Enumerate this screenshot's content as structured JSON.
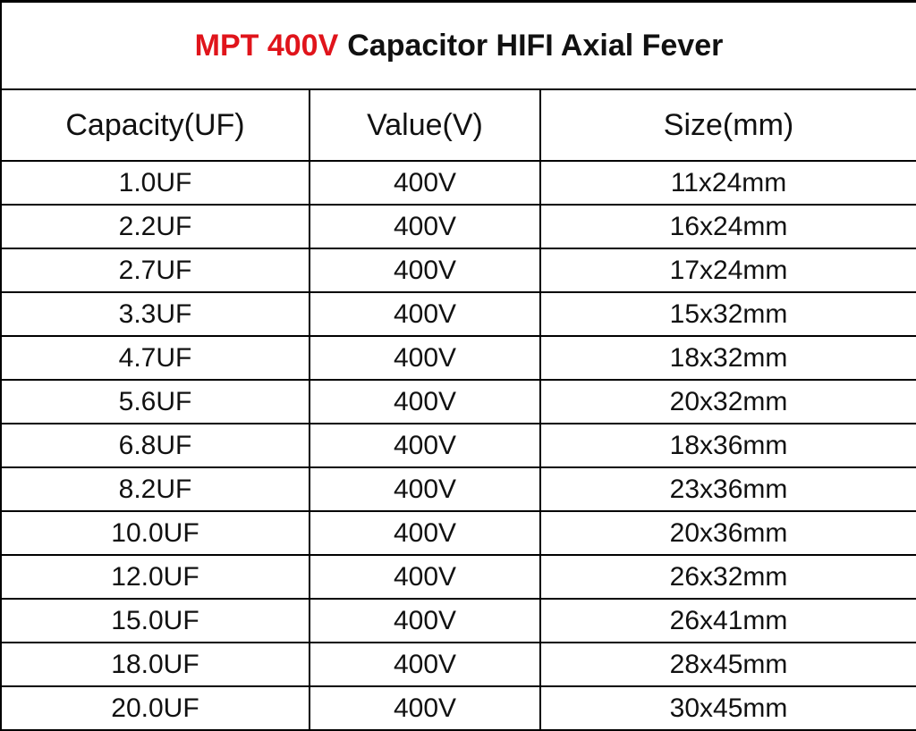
{
  "title": {
    "highlight": "MPT 400V",
    "text": "Capacitor HIFI Axial Fever"
  },
  "table": {
    "header": [
      "Capacity(UF)",
      "Value(V)",
      "Size(mm)"
    ],
    "rows": [
      [
        "1.0UF",
        "400V",
        "11x24mm"
      ],
      [
        "2.2UF",
        "400V",
        "16x24mm"
      ],
      [
        "2.7UF",
        "400V",
        "17x24mm"
      ],
      [
        "3.3UF",
        "400V",
        "15x32mm"
      ],
      [
        "4.7UF",
        "400V",
        "18x32mm"
      ],
      [
        "5.6UF",
        "400V",
        "20x32mm"
      ],
      [
        "6.8UF",
        "400V",
        "18x36mm"
      ],
      [
        "8.2UF",
        "400V",
        "23x36mm"
      ],
      [
        "10.0UF",
        "400V",
        "20x36mm"
      ],
      [
        "12.0UF",
        "400V",
        "26x32mm"
      ],
      [
        "15.0UF",
        "400V",
        "26x41mm"
      ],
      [
        "18.0UF",
        "400V",
        "28x45mm"
      ],
      [
        "20.0UF",
        "400V",
        "30x45mm"
      ]
    ]
  }
}
